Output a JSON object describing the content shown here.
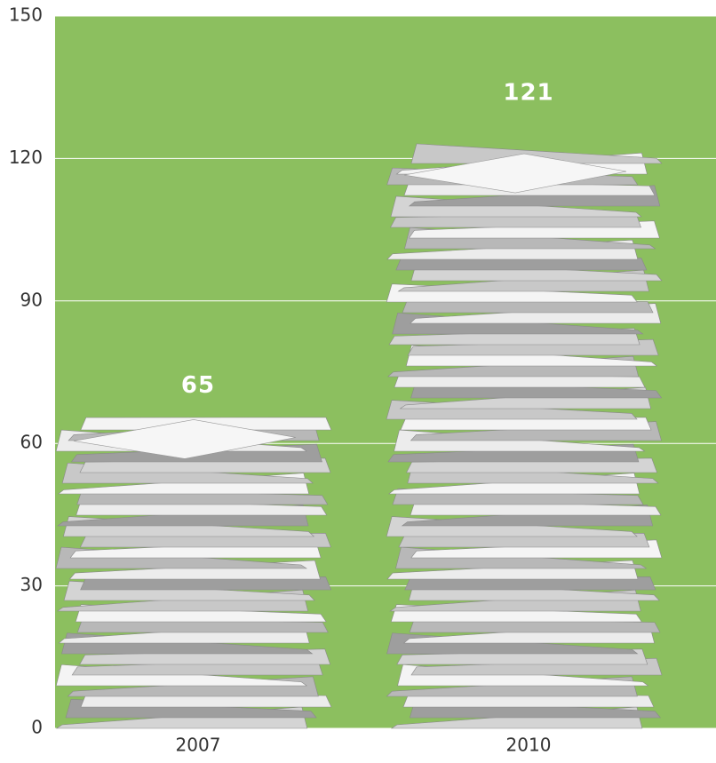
{
  "chart_data": {
    "type": "pictograph-bar",
    "categories": [
      "2007",
      "2010"
    ],
    "values": [
      65,
      121
    ],
    "ylim": [
      0,
      150
    ],
    "yticks": [
      0,
      30,
      60,
      90,
      120,
      150
    ],
    "grid": true,
    "background_color": "#8cbf5f"
  }
}
